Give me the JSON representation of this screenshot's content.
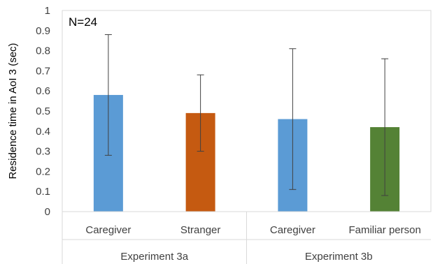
{
  "chart_data": {
    "type": "bar",
    "annotation": "N=24",
    "ylabel": "Residence time in AoI 3 (sec)",
    "ylim": [
      0,
      1
    ],
    "yticks": [
      "0",
      "0.1",
      "0.2",
      "0.3",
      "0.4",
      "0.5",
      "0.6",
      "0.7",
      "0.8",
      "0.9",
      "1"
    ],
    "grid": false,
    "categories": [
      "Caregiver",
      "Stranger",
      "Caregiver",
      "Familiar person"
    ],
    "groups": [
      {
        "label": "Experiment 3a",
        "categories": [
          0,
          1
        ]
      },
      {
        "label": "Experiment 3b",
        "categories": [
          2,
          3
        ]
      }
    ],
    "values": [
      0.58,
      0.49,
      0.46,
      0.42
    ],
    "error_low": [
      0.28,
      0.3,
      0.11,
      0.08
    ],
    "error_high": [
      0.88,
      0.68,
      0.81,
      0.76
    ],
    "bar_colors": [
      "#5b9bd5",
      "#c55a11",
      "#5b9bd5",
      "#548235"
    ]
  }
}
